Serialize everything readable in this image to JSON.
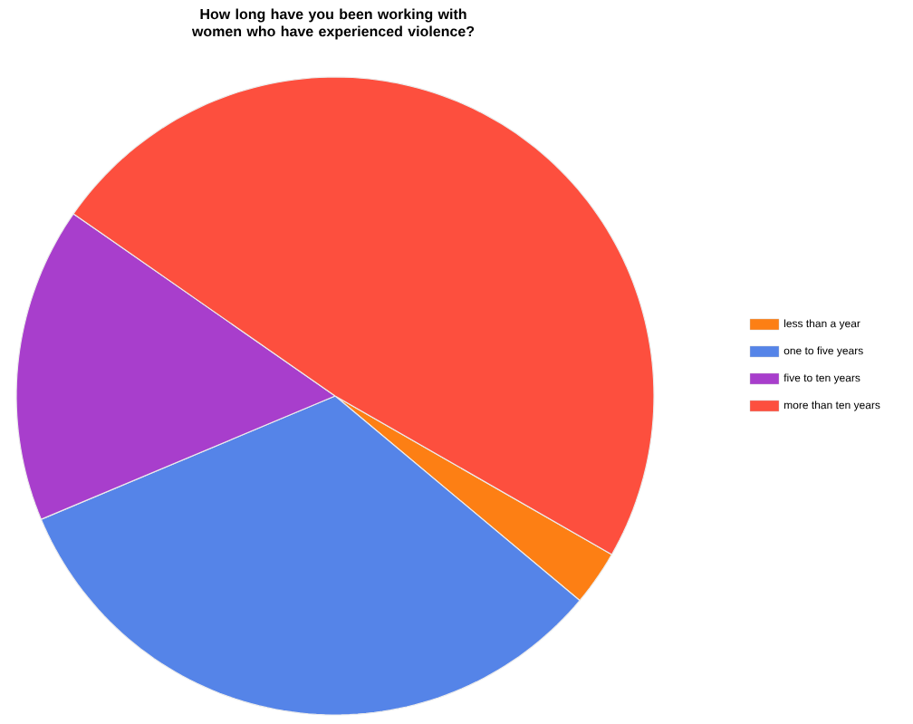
{
  "chart_data": {
    "type": "pie",
    "title": "How long have you been working with women who have experienced violence?",
    "categories": [
      "less than a year",
      "one to five years",
      "five to ten years",
      "more than ten years"
    ],
    "values": [
      2.8,
      32.6,
      16,
      48.6
    ],
    "colors": [
      "#fd7f14",
      "#5584e8",
      "#a83ecc",
      "#fd4f3e"
    ],
    "legend": "right"
  }
}
